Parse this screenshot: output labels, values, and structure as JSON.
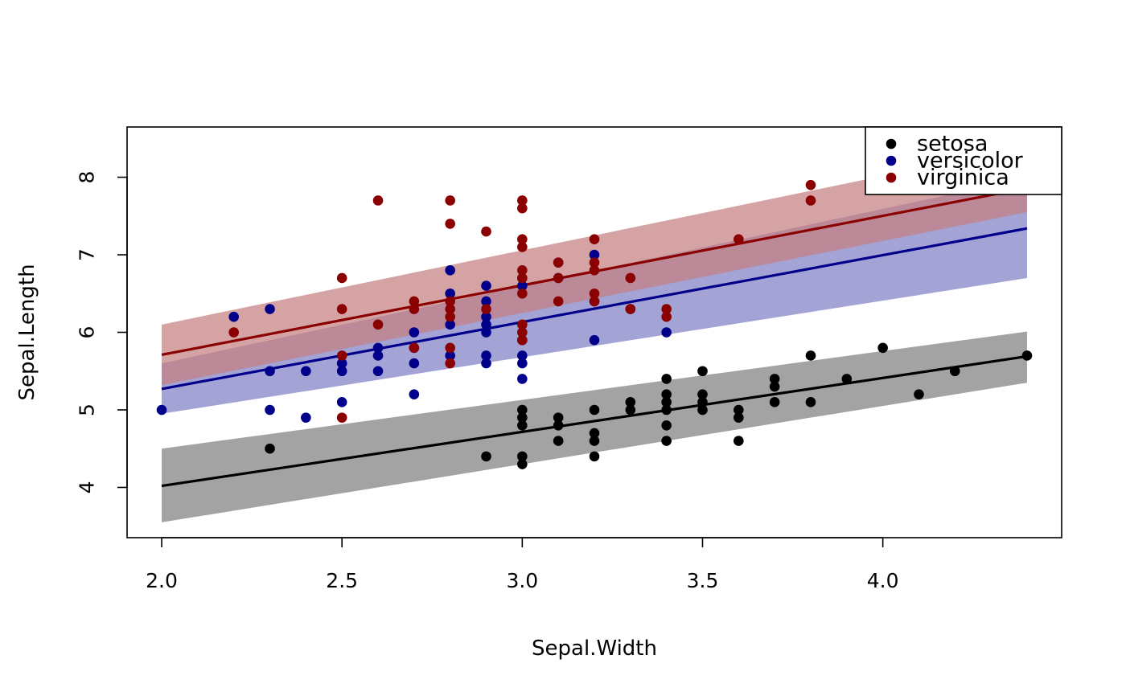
{
  "chart_data": {
    "type": "scatter",
    "title": "",
    "xlabel": "Sepal.Width",
    "ylabel": "Sepal.Length",
    "xlim": [
      1.904,
      4.496
    ],
    "ylim": [
      3.352,
      8.648
    ],
    "x_ticks": [
      2.0,
      2.5,
      3.0,
      3.5,
      4.0
    ],
    "x_tick_labels": [
      "2.0",
      "2.5",
      "3.0",
      "3.5",
      "4.0"
    ],
    "y_ticks": [
      4,
      5,
      6,
      7,
      8
    ],
    "y_tick_labels": [
      "4",
      "5",
      "6",
      "7",
      "8"
    ],
    "grid": false,
    "legend": {
      "position": "top-right",
      "entries": [
        "setosa",
        "versicolor",
        "virginica"
      ]
    },
    "series": [
      {
        "name": "setosa",
        "color": "#000000",
        "band_color": "#7f7f7f",
        "fit": {
          "x": [
            2.0,
            4.4
          ],
          "y": [
            4.02,
            5.69
          ]
        },
        "band": {
          "x": [
            2.0,
            4.4
          ],
          "lower": [
            3.55,
            5.35
          ],
          "upper": [
            4.5,
            6.01
          ]
        },
        "points": [
          [
            2.3,
            4.5
          ],
          [
            2.9,
            4.4
          ],
          [
            3.0,
            4.4
          ],
          [
            3.0,
            4.3
          ],
          [
            3.0,
            4.8
          ],
          [
            3.0,
            4.9
          ],
          [
            3.0,
            5.0
          ],
          [
            3.1,
            4.6
          ],
          [
            3.1,
            4.8
          ],
          [
            3.1,
            4.9
          ],
          [
            3.2,
            4.4
          ],
          [
            3.2,
            4.6
          ],
          [
            3.2,
            4.7
          ],
          [
            3.2,
            5.0
          ],
          [
            3.3,
            5.0
          ],
          [
            3.3,
            5.1
          ],
          [
            3.4,
            4.6
          ],
          [
            3.4,
            4.8
          ],
          [
            3.4,
            5.0
          ],
          [
            3.4,
            5.1
          ],
          [
            3.4,
            5.2
          ],
          [
            3.4,
            5.4
          ],
          [
            3.5,
            5.0
          ],
          [
            3.5,
            5.1
          ],
          [
            3.5,
            5.2
          ],
          [
            3.5,
            5.5
          ],
          [
            3.6,
            4.6
          ],
          [
            3.6,
            4.9
          ],
          [
            3.6,
            5.0
          ],
          [
            3.7,
            5.1
          ],
          [
            3.7,
            5.3
          ],
          [
            3.7,
            5.4
          ],
          [
            3.8,
            5.1
          ],
          [
            3.8,
            5.7
          ],
          [
            3.9,
            5.4
          ],
          [
            4.0,
            5.8
          ],
          [
            4.1,
            5.2
          ],
          [
            4.2,
            5.5
          ],
          [
            4.4,
            5.7
          ]
        ]
      },
      {
        "name": "versicolor",
        "color": "#00008b",
        "band_color": "#7f7fc5",
        "fit": {
          "x": [
            2.0,
            4.4
          ],
          "y": [
            5.27,
            7.34
          ]
        },
        "band": {
          "x": [
            2.0,
            4.4
          ],
          "lower": [
            4.95,
            6.7
          ],
          "upper": [
            5.6,
            7.99
          ]
        },
        "points": [
          [
            2.0,
            5.0
          ],
          [
            2.2,
            6.2
          ],
          [
            2.3,
            6.3
          ],
          [
            2.3,
            5.5
          ],
          [
            2.3,
            5.0
          ],
          [
            2.4,
            5.5
          ],
          [
            2.4,
            4.9
          ],
          [
            2.5,
            5.6
          ],
          [
            2.5,
            5.5
          ],
          [
            2.5,
            5.1
          ],
          [
            2.6,
            5.8
          ],
          [
            2.6,
            5.7
          ],
          [
            2.6,
            5.5
          ],
          [
            2.7,
            6.0
          ],
          [
            2.7,
            5.8
          ],
          [
            2.7,
            5.6
          ],
          [
            2.7,
            5.2
          ],
          [
            2.8,
            6.8
          ],
          [
            2.8,
            6.5
          ],
          [
            2.8,
            6.1
          ],
          [
            2.8,
            5.7
          ],
          [
            2.9,
            6.6
          ],
          [
            2.9,
            6.4
          ],
          [
            2.9,
            6.2
          ],
          [
            2.9,
            6.1
          ],
          [
            2.9,
            6.0
          ],
          [
            2.9,
            5.7
          ],
          [
            2.9,
            5.6
          ],
          [
            3.0,
            6.7
          ],
          [
            3.0,
            6.6
          ],
          [
            3.0,
            5.9
          ],
          [
            3.0,
            5.7
          ],
          [
            3.0,
            5.6
          ],
          [
            3.0,
            5.4
          ],
          [
            3.1,
            6.9
          ],
          [
            3.1,
            6.7
          ],
          [
            3.2,
            7.0
          ],
          [
            3.2,
            6.4
          ],
          [
            3.2,
            5.9
          ],
          [
            3.3,
            6.3
          ],
          [
            3.4,
            6.0
          ]
        ]
      },
      {
        "name": "virginica",
        "color": "#8b0000",
        "band_color": "#c57f7f",
        "fit": {
          "x": [
            2.0,
            4.4
          ],
          "y": [
            5.71,
            7.86
          ]
        },
        "band": {
          "x": [
            2.0,
            4.4
          ],
          "lower": [
            5.32,
            7.55
          ],
          "upper": [
            6.1,
            8.4
          ]
        },
        "points": [
          [
            2.2,
            6.0
          ],
          [
            2.5,
            6.7
          ],
          [
            2.5,
            6.3
          ],
          [
            2.5,
            5.7
          ],
          [
            2.5,
            4.9
          ],
          [
            2.6,
            7.7
          ],
          [
            2.6,
            6.1
          ],
          [
            2.7,
            6.4
          ],
          [
            2.7,
            6.3
          ],
          [
            2.7,
            5.8
          ],
          [
            2.8,
            7.7
          ],
          [
            2.8,
            7.4
          ],
          [
            2.8,
            6.4
          ],
          [
            2.8,
            6.3
          ],
          [
            2.8,
            6.2
          ],
          [
            2.8,
            5.8
          ],
          [
            2.8,
            5.6
          ],
          [
            2.9,
            7.3
          ],
          [
            2.9,
            6.3
          ],
          [
            3.0,
            7.7
          ],
          [
            3.0,
            7.6
          ],
          [
            3.0,
            7.2
          ],
          [
            3.0,
            7.1
          ],
          [
            3.0,
            6.8
          ],
          [
            3.0,
            6.7
          ],
          [
            3.0,
            6.5
          ],
          [
            3.0,
            6.1
          ],
          [
            3.0,
            6.0
          ],
          [
            3.0,
            5.9
          ],
          [
            3.1,
            6.9
          ],
          [
            3.1,
            6.7
          ],
          [
            3.1,
            6.4
          ],
          [
            3.2,
            7.2
          ],
          [
            3.2,
            6.9
          ],
          [
            3.2,
            6.8
          ],
          [
            3.2,
            6.5
          ],
          [
            3.2,
            6.4
          ],
          [
            3.3,
            6.7
          ],
          [
            3.3,
            6.3
          ],
          [
            3.4,
            6.3
          ],
          [
            3.4,
            6.2
          ],
          [
            3.6,
            7.2
          ],
          [
            3.8,
            7.9
          ],
          [
            3.8,
            7.7
          ]
        ]
      }
    ]
  }
}
